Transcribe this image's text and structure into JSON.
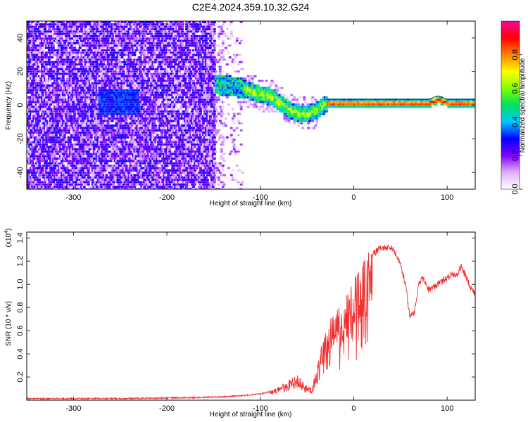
{
  "title": "C2E4.2024.359.10.32.G24",
  "chart_data": [
    {
      "type": "heatmap",
      "xlabel": "Height of straight line (km)",
      "ylabel": "Frequency (Hz)",
      "xlim": [
        -350,
        130
      ],
      "ylim": [
        -50,
        50
      ],
      "xticks": [
        "-300",
        "-200",
        "-100",
        "0",
        "100"
      ],
      "xtick_values": [
        -300,
        -200,
        -100,
        0,
        100
      ],
      "yticks": [
        "-40",
        "-20",
        "0",
        "20",
        "40"
      ],
      "ytick_values": [
        -40,
        -20,
        0,
        20,
        40
      ],
      "colorbar": {
        "label": "Normalized spectral amplitude",
        "range": [
          0,
          1
        ],
        "ticks": [
          "0.0",
          "0.2",
          "0.4",
          "0.6",
          "0.8"
        ],
        "tick_values": [
          0.0,
          0.2,
          0.4,
          0.6,
          0.8
        ],
        "colors": [
          "#ffffff",
          "#e0b0ff",
          "#8000ff",
          "#0000ff",
          "#00c8ff",
          "#00e060",
          "#80ff00",
          "#ffff00",
          "#ff8000",
          "#ff0000",
          "#ff00a0"
        ]
      },
      "ridge": {
        "x": [
          -145,
          -130,
          -120,
          -110,
          -100,
          -90,
          -80,
          -70,
          -60,
          -50,
          -40,
          -30,
          -20,
          -10,
          0,
          20,
          40,
          60,
          80,
          90,
          100,
          130
        ],
        "y": [
          12,
          11,
          10,
          8,
          6,
          5,
          1,
          -3,
          -5,
          -5,
          -3,
          1,
          1,
          1,
          1,
          1,
          1,
          1,
          1,
          3,
          1,
          1
        ]
      }
    },
    {
      "type": "line",
      "xlabel": "Height of straight line (km)",
      "ylabel": "SNR (10 * v/v)",
      "yunit_label": "(x10",
      "yunit_exp": "4",
      "xlim": [
        -350,
        130
      ],
      "ylim": [
        0,
        1.45
      ],
      "xticks": [
        "-300",
        "-200",
        "-100",
        "0",
        "100"
      ],
      "xtick_values": [
        -300,
        -200,
        -100,
        0,
        100
      ],
      "yticks": [
        "0.2",
        "0.4",
        "0.6",
        "0.8",
        "1.0",
        "1.2",
        "1.4"
      ],
      "ytick_values": [
        0.2,
        0.4,
        0.6,
        0.8,
        1.0,
        1.2,
        1.4
      ],
      "color": "#f03030",
      "envelope": {
        "x": [
          -350,
          -250,
          -200,
          -160,
          -140,
          -120,
          -100,
          -90,
          -80,
          -70,
          -60,
          -55,
          -50,
          -45,
          -40,
          -35,
          -30,
          -25,
          -20,
          -15,
          -10,
          -5,
          0,
          5,
          10,
          15,
          20,
          25,
          30,
          35,
          40,
          45,
          50,
          55,
          60,
          65,
          70,
          75,
          80,
          85,
          90,
          95,
          100,
          105,
          110,
          115,
          120,
          125,
          130
        ],
        "y": [
          0.02,
          0.02,
          0.025,
          0.03,
          0.035,
          0.045,
          0.06,
          0.08,
          0.12,
          0.17,
          0.22,
          0.18,
          0.12,
          0.1,
          0.3,
          0.5,
          0.62,
          0.72,
          0.85,
          0.8,
          0.9,
          0.95,
          1.05,
          1.18,
          1.25,
          1.3,
          1.28,
          1.32,
          1.35,
          1.34,
          1.35,
          1.3,
          1.2,
          1.05,
          0.75,
          0.8,
          1.05,
          1.08,
          0.98,
          1.0,
          1.03,
          1.06,
          1.08,
          1.12,
          1.1,
          1.18,
          1.1,
          1.0,
          0.95
        ]
      }
    }
  ]
}
